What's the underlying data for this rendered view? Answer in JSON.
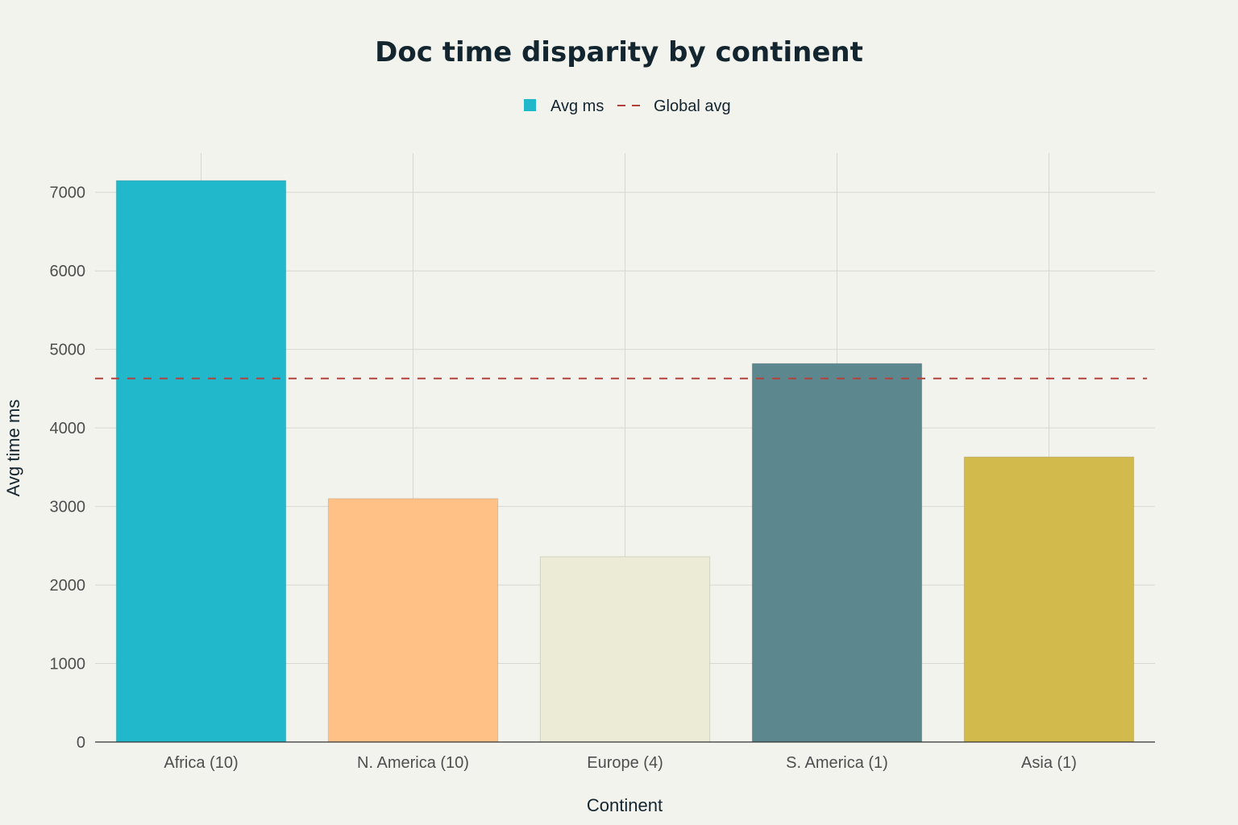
{
  "chart_data": {
    "type": "bar",
    "title": "Doc time disparity by continent",
    "xlabel": "Continent",
    "ylabel": "Avg time ms",
    "categories": [
      "Africa (10)",
      "N. America (10)",
      "Europe (4)",
      "S. America (1)",
      "Asia (1)"
    ],
    "values": [
      7150,
      3100,
      2360,
      4820,
      3630
    ],
    "bar_colors": [
      "#21b8cc",
      "#ffc185",
      "#ecebd5",
      "#5d878f",
      "#d2ba4c"
    ],
    "reference_line": {
      "name": "Global avg",
      "value": 4630,
      "color": "#b4413c",
      "style": "dashed"
    },
    "series": [
      {
        "name": "Avg ms",
        "color": "#21b8cc"
      }
    ],
    "legend": {
      "placement": "top-center",
      "items": [
        {
          "label": "Avg ms",
          "marker": "square",
          "color": "#21b8cc"
        },
        {
          "label": "Global avg",
          "marker": "dashed-line",
          "color": "#b4413c"
        }
      ]
    },
    "ylim": [
      0,
      7500
    ],
    "yticks": [
      0,
      1000,
      2000,
      3000,
      4000,
      5000,
      6000,
      7000
    ],
    "grid": true
  }
}
